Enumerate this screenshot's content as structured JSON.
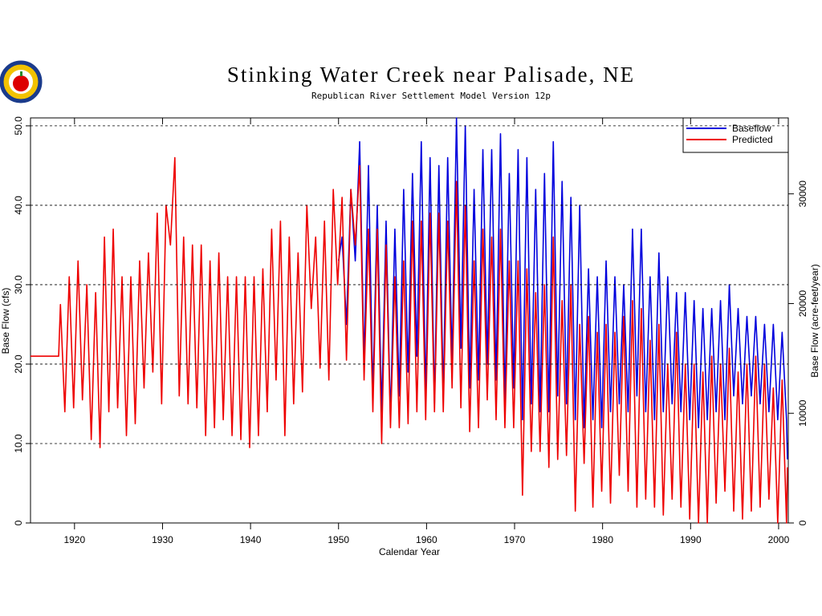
{
  "chart_data": {
    "type": "line",
    "title": "Stinking Water Creek near Palisade, NE",
    "subtitle": "Republican River Settlement Model Version 12p",
    "xlabel": "Calendar Year",
    "ylabel": "Base Flow (cfs)",
    "y2label": "Base Flow (acre-feet/year)",
    "xlim": [
      1915,
      2001.1
    ],
    "xticks": [
      1920,
      1930,
      1940,
      1950,
      1960,
      1970,
      1980,
      1990,
      2000
    ],
    "ylim": [
      0,
      51
    ],
    "yticks": [
      0,
      {
        "value": 10,
        "label": "10.0"
      },
      {
        "value": 20,
        "label": "20.0"
      },
      {
        "value": 30,
        "label": "30.0"
      },
      {
        "value": 40,
        "label": "40.0"
      },
      {
        "value": 50,
        "label": "50.0"
      }
    ],
    "y2lim": [
      0,
      36924
    ],
    "y2ticks": [
      0,
      10000,
      20000,
      30000
    ],
    "grid": true,
    "legend": "upper right",
    "series": [
      {
        "name": "Baseflow",
        "color": "#0000dd",
        "x": [
          1950.0,
          1950.4,
          1950.9,
          1951.4,
          1951.9,
          1952.4,
          1952.9,
          1953.4,
          1953.9,
          1954.4,
          1954.9,
          1955.4,
          1955.9,
          1956.4,
          1956.9,
          1957.4,
          1957.9,
          1958.4,
          1958.9,
          1959.4,
          1959.9,
          1960.4,
          1960.9,
          1961.4,
          1961.9,
          1962.4,
          1962.9,
          1963.4,
          1963.9,
          1964.4,
          1964.9,
          1965.4,
          1965.9,
          1966.4,
          1966.9,
          1967.4,
          1967.9,
          1968.4,
          1968.9,
          1969.4,
          1969.9,
          1970.4,
          1970.9,
          1971.4,
          1971.9,
          1972.4,
          1972.9,
          1973.4,
          1973.9,
          1974.4,
          1974.9,
          1975.4,
          1975.9,
          1976.4,
          1976.9,
          1977.4,
          1977.9,
          1978.4,
          1978.9,
          1979.4,
          1979.9,
          1980.4,
          1980.9,
          1981.4,
          1981.9,
          1982.4,
          1982.9,
          1983.4,
          1983.9,
          1984.4,
          1984.9,
          1985.4,
          1985.9,
          1986.4,
          1986.9,
          1987.4,
          1987.9,
          1988.4,
          1988.9,
          1989.4,
          1989.9,
          1990.4,
          1990.9,
          1991.4,
          1991.9,
          1992.4,
          1992.9,
          1993.4,
          1993.9,
          1994.4,
          1994.9,
          1995.4,
          1995.9,
          1996.4,
          1996.9,
          1997.4,
          1997.9,
          1998.4,
          1998.9,
          1999.4,
          1999.9,
          2000.4,
          2000.9,
          2001.0
        ],
        "values": [
          33,
          36,
          25,
          42,
          33,
          48,
          20,
          45,
          16,
          40,
          14,
          38,
          13,
          37,
          16,
          42,
          19,
          44,
          21,
          48,
          16,
          46,
          15,
          45,
          16,
          46,
          20,
          51,
          22,
          50,
          17,
          42,
          18,
          47,
          20,
          47,
          18,
          49,
          15,
          44,
          17,
          47,
          13,
          46,
          15,
          42,
          14,
          44,
          14,
          48,
          16,
          43,
          15,
          41,
          13,
          40,
          12,
          32,
          13,
          31,
          12,
          33,
          14,
          31,
          15,
          30,
          14,
          37,
          16,
          37,
          14,
          31,
          13,
          34,
          14,
          31,
          15,
          29,
          14,
          29,
          13,
          28,
          12,
          27,
          13,
          27,
          14,
          28,
          13,
          30,
          16,
          27,
          15,
          26,
          16,
          26,
          15,
          25,
          14,
          25,
          13,
          24,
          13,
          8
        ]
      },
      {
        "name": "Predicted",
        "color": "#ee0000",
        "x": [
          1915,
          1918.2,
          1918.4,
          1918.9,
          1919.4,
          1919.9,
          1920.4,
          1920.9,
          1921.4,
          1921.9,
          1922.4,
          1922.9,
          1923.4,
          1923.9,
          1924.4,
          1924.9,
          1925.4,
          1925.9,
          1926.4,
          1926.9,
          1927.4,
          1927.9,
          1928.4,
          1928.9,
          1929.4,
          1929.9,
          1930.4,
          1930.9,
          1931.4,
          1931.9,
          1932.4,
          1932.9,
          1933.4,
          1933.9,
          1934.4,
          1934.9,
          1935.4,
          1935.9,
          1936.4,
          1936.9,
          1937.4,
          1937.9,
          1938.4,
          1938.9,
          1939.4,
          1939.9,
          1940.4,
          1940.9,
          1941.4,
          1941.9,
          1942.4,
          1942.9,
          1943.4,
          1943.9,
          1944.4,
          1944.9,
          1945.4,
          1945.9,
          1946.4,
          1946.9,
          1947.4,
          1947.9,
          1948.4,
          1948.9,
          1949.4,
          1949.9,
          1950.4,
          1950.9,
          1951.4,
          1951.9,
          1952.4,
          1952.9,
          1953.4,
          1953.9,
          1954.4,
          1954.9,
          1955.4,
          1955.9,
          1956.4,
          1956.9,
          1957.4,
          1957.9,
          1958.4,
          1958.9,
          1959.4,
          1959.9,
          1960.4,
          1960.9,
          1961.4,
          1961.9,
          1962.4,
          1962.9,
          1963.4,
          1963.9,
          1964.4,
          1964.9,
          1965.4,
          1965.9,
          1966.4,
          1966.9,
          1967.4,
          1967.9,
          1968.4,
          1968.9,
          1969.4,
          1969.9,
          1970.4,
          1970.9,
          1971.4,
          1971.9,
          1972.4,
          1972.9,
          1973.4,
          1973.9,
          1974.4,
          1974.9,
          1975.4,
          1975.9,
          1976.4,
          1976.9,
          1977.4,
          1977.9,
          1978.4,
          1978.9,
          1979.4,
          1979.9,
          1980.4,
          1980.9,
          1981.4,
          1981.9,
          1982.4,
          1982.9,
          1983.4,
          1983.9,
          1984.4,
          1984.9,
          1985.4,
          1985.9,
          1986.4,
          1986.9,
          1987.4,
          1987.9,
          1988.4,
          1988.9,
          1989.4,
          1989.9,
          1990.4,
          1990.9,
          1991.4,
          1991.9,
          1992.4,
          1992.9,
          1993.4,
          1993.9,
          1994.4,
          1994.9,
          1995.4,
          1995.9,
          1996.4,
          1996.9,
          1997.4,
          1997.9,
          1998.4,
          1998.9,
          1999.4,
          1999.9,
          2000.4,
          2000.9,
          2001.0
        ],
        "values": [
          21,
          21,
          27.5,
          14,
          31,
          14.5,
          33,
          15.5,
          30,
          10.5,
          29,
          9.5,
          36,
          14,
          37,
          14.5,
          31,
          11,
          31,
          12.5,
          33,
          17,
          34,
          19,
          39,
          15,
          40,
          35,
          46,
          16,
          36,
          15,
          35,
          14.5,
          35,
          11,
          33,
          12,
          34,
          13,
          31,
          11,
          31,
          10.5,
          31,
          9.5,
          31,
          11,
          32,
          14,
          37,
          18,
          38,
          11,
          36,
          15,
          34,
          16.5,
          40,
          27,
          36,
          19.5,
          38,
          18,
          42,
          30,
          41,
          20.5,
          42,
          35,
          45,
          18,
          37,
          14,
          37,
          10,
          35,
          12,
          31,
          12,
          33,
          12.5,
          38,
          14,
          38,
          13,
          39,
          14,
          39,
          14,
          38,
          17,
          43,
          14.5,
          40,
          11.5,
          33,
          12,
          37,
          15.5,
          36,
          13,
          37,
          12,
          33,
          12,
          33,
          3.5,
          32,
          9,
          29,
          9,
          30,
          7,
          36,
          8,
          28,
          8.5,
          30,
          1.5,
          25,
          7.5,
          26,
          2,
          24,
          4,
          25,
          2.5,
          24,
          6,
          26,
          4,
          28,
          2,
          27,
          3,
          23,
          2,
          25,
          1,
          20,
          3,
          24,
          2,
          20,
          0.5,
          20,
          0,
          19,
          0,
          21,
          2.5,
          20,
          4,
          22,
          1.5,
          19,
          0.5,
          20,
          1.5,
          21,
          2,
          20,
          3,
          17,
          0,
          18,
          0,
          7
        ]
      }
    ]
  }
}
